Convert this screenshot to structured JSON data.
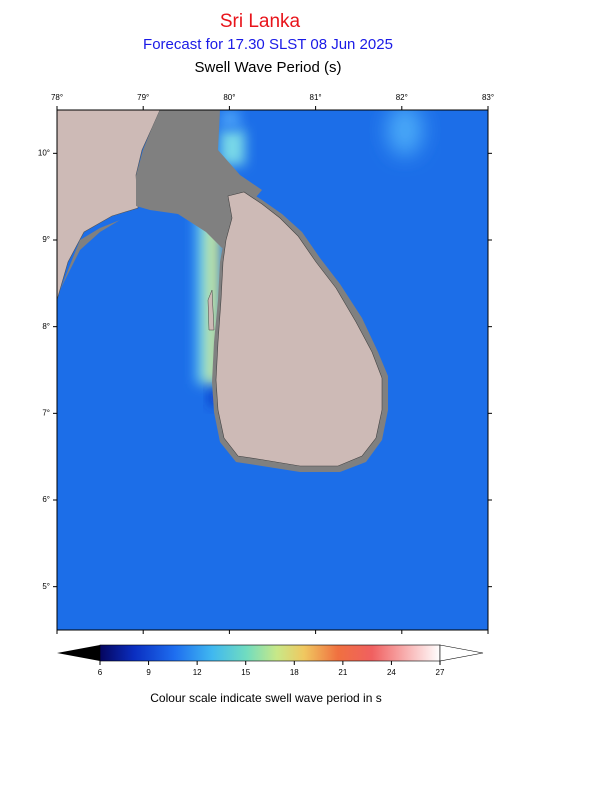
{
  "header": {
    "title": "Sri Lanka",
    "subtitle": "Forecast for  17.30 SLST 08 Jun 2025",
    "variable": "Swell Wave Period (s)"
  },
  "map": {
    "lon_range": [
      78,
      83
    ],
    "lat_range": [
      4.5,
      10.5
    ],
    "lon_ticks": [
      {
        "value": 78,
        "label": "78°"
      },
      {
        "value": 79,
        "label": "79°"
      },
      {
        "value": 80,
        "label": "80°"
      },
      {
        "value": 81,
        "label": "81°"
      },
      {
        "value": 82,
        "label": "82°"
      },
      {
        "value": 83,
        "label": "83°"
      }
    ],
    "lat_ticks": [
      {
        "value": 10,
        "label": "10°"
      },
      {
        "value": 9,
        "label": "9°"
      },
      {
        "value": 8,
        "label": "8°"
      },
      {
        "value": 7,
        "label": "7°"
      },
      {
        "value": 6,
        "label": "6°"
      },
      {
        "value": 5,
        "label": "5°"
      }
    ]
  },
  "colorbar": {
    "range": [
      6,
      27
    ],
    "ticks": [
      6,
      9,
      12,
      15,
      18,
      21,
      24,
      27
    ],
    "caption": "Colour scale indicate swell wave period in s"
  }
}
